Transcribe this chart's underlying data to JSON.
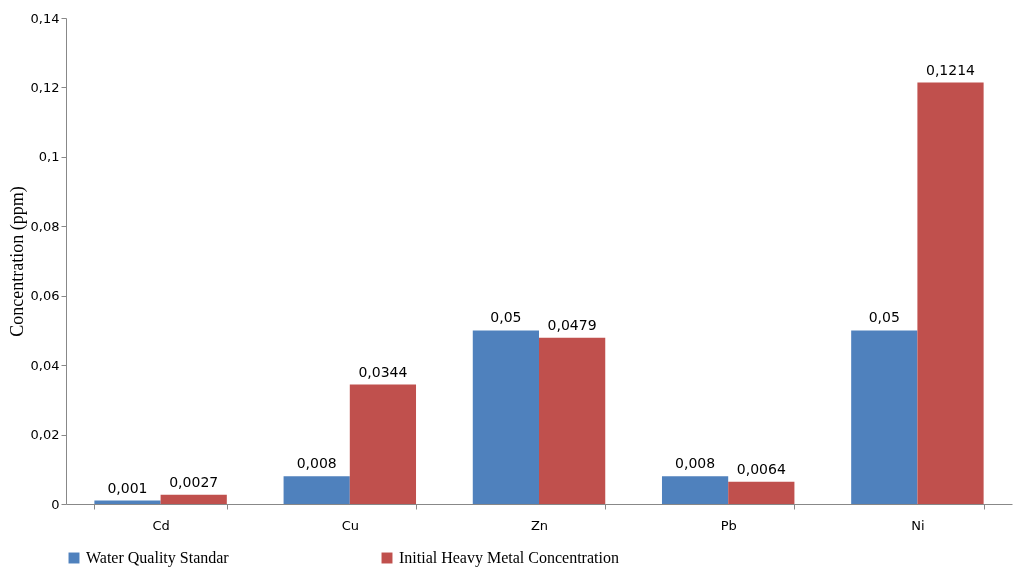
{
  "chart_data": {
    "type": "bar",
    "categories": [
      "Cd",
      "Cu",
      "Zn",
      "Pb",
      "Ni"
    ],
    "ylabel": "Concentration (ppm)",
    "series": [
      {
        "name": "Water Quality Standar",
        "color": "#4f81bd",
        "values": [
          0.001,
          0.008,
          0.05,
          0.008,
          0.05
        ],
        "value_labels": [
          "0,001",
          "0,008",
          "0,05",
          "0,008",
          "0,05"
        ]
      },
      {
        "name": "Initial Heavy Metal Concentration",
        "color": "#c0504d",
        "values": [
          0.0027,
          0.0344,
          0.0479,
          0.0064,
          0.1214
        ],
        "value_labels": [
          "0,0027",
          "0,0344",
          "0,0479",
          "0,0064",
          "0,1214"
        ]
      }
    ],
    "ylim": [
      0,
      0.14
    ],
    "yticks": [
      0,
      {
        "value": 0.02,
        "label": "0,02"
      },
      {
        "value": 0.04,
        "label": "0,04"
      },
      {
        "value": 0.06,
        "label": "0,06"
      },
      {
        "value": 0.08,
        "label": "0,08"
      },
      {
        "value": 0.1,
        "label": "0,1"
      },
      {
        "value": 0.12,
        "label": "0,12"
      },
      {
        "value": 0.14,
        "label": "0,14"
      }
    ],
    "grid": false,
    "legend": "bottom"
  }
}
